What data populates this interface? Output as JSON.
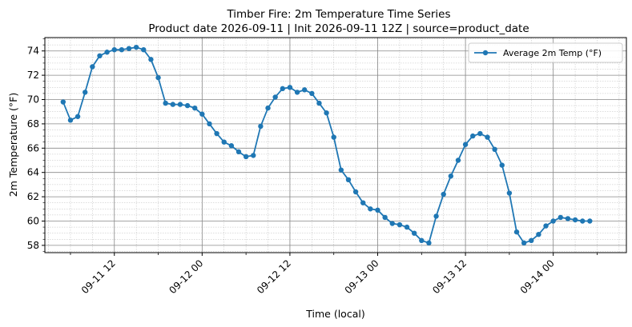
{
  "chart_data": {
    "type": "line",
    "title": "Timber Fire: 2m Temperature Time Series",
    "subtitle": "Product date 2026-09-11 | Init 2026-09-11 12Z | source=product_date",
    "xlabel": "Time (local)",
    "ylabel": "2m Temperature (°F)",
    "xlim": [
      "2026-09-11 02:30",
      "2026-09-14 10:00"
    ],
    "ylim": [
      57.4,
      75.1
    ],
    "x_ticks": [
      "09-11 12",
      "09-12 00",
      "09-12 12",
      "09-13 00",
      "09-13 12",
      "09-14 00"
    ],
    "y_ticks": [
      58,
      60,
      62,
      64,
      66,
      68,
      70,
      72,
      74
    ],
    "grid": true,
    "legend_position": "top-right",
    "series": [
      {
        "name": "Average 2m Temp (°F)",
        "color": "#1f77b4",
        "x": [
          "2026-09-11 05:00",
          "2026-09-11 06:00",
          "2026-09-11 07:00",
          "2026-09-11 08:00",
          "2026-09-11 09:00",
          "2026-09-11 10:00",
          "2026-09-11 11:00",
          "2026-09-11 12:00",
          "2026-09-11 13:00",
          "2026-09-11 14:00",
          "2026-09-11 15:00",
          "2026-09-11 16:00",
          "2026-09-11 17:00",
          "2026-09-11 18:00",
          "2026-09-11 19:00",
          "2026-09-11 20:00",
          "2026-09-11 21:00",
          "2026-09-11 22:00",
          "2026-09-11 23:00",
          "2026-09-12 00:00",
          "2026-09-12 01:00",
          "2026-09-12 02:00",
          "2026-09-12 03:00",
          "2026-09-12 04:00",
          "2026-09-12 05:00",
          "2026-09-12 06:00",
          "2026-09-12 07:00",
          "2026-09-12 08:00",
          "2026-09-12 09:00",
          "2026-09-12 10:00",
          "2026-09-12 11:00",
          "2026-09-12 12:00",
          "2026-09-12 13:00",
          "2026-09-12 14:00",
          "2026-09-12 15:00",
          "2026-09-12 16:00",
          "2026-09-12 17:00",
          "2026-09-12 18:00",
          "2026-09-12 19:00",
          "2026-09-12 20:00",
          "2026-09-12 21:00",
          "2026-09-12 22:00",
          "2026-09-12 23:00",
          "2026-09-13 00:00",
          "2026-09-13 01:00",
          "2026-09-13 02:00",
          "2026-09-13 03:00",
          "2026-09-13 04:00",
          "2026-09-13 05:00",
          "2026-09-13 06:00",
          "2026-09-13 07:00",
          "2026-09-13 08:00",
          "2026-09-13 09:00",
          "2026-09-13 10:00",
          "2026-09-13 11:00",
          "2026-09-13 12:00",
          "2026-09-13 13:00",
          "2026-09-13 14:00",
          "2026-09-13 15:00",
          "2026-09-13 16:00",
          "2026-09-13 17:00",
          "2026-09-13 18:00",
          "2026-09-13 19:00",
          "2026-09-13 20:00",
          "2026-09-13 21:00",
          "2026-09-13 22:00",
          "2026-09-13 23:00",
          "2026-09-14 00:00",
          "2026-09-14 01:00",
          "2026-09-14 02:00",
          "2026-09-14 03:00",
          "2026-09-14 04:00",
          "2026-09-14 05:00"
        ],
        "values": [
          69.8,
          68.3,
          68.6,
          70.6,
          72.7,
          73.6,
          73.9,
          74.1,
          74.1,
          74.2,
          74.3,
          74.1,
          73.3,
          71.8,
          69.7,
          69.6,
          69.6,
          69.5,
          69.3,
          68.8,
          68.0,
          67.2,
          66.5,
          66.2,
          65.7,
          65.3,
          65.4,
          67.8,
          69.3,
          70.2,
          70.9,
          71.0,
          70.6,
          70.8,
          70.5,
          69.7,
          68.9,
          66.9,
          64.2,
          63.4,
          62.4,
          61.5,
          61.0,
          60.9,
          60.3,
          59.8,
          59.7,
          59.5,
          59.0,
          58.4,
          58.2,
          60.4,
          62.2,
          63.7,
          65.0,
          66.3,
          67.0,
          67.2,
          66.9,
          65.9,
          64.6,
          62.3,
          59.1,
          58.2,
          58.4,
          58.9,
          59.6,
          60.0,
          60.3,
          60.2,
          60.1,
          60.0,
          60.0
        ]
      }
    ]
  }
}
